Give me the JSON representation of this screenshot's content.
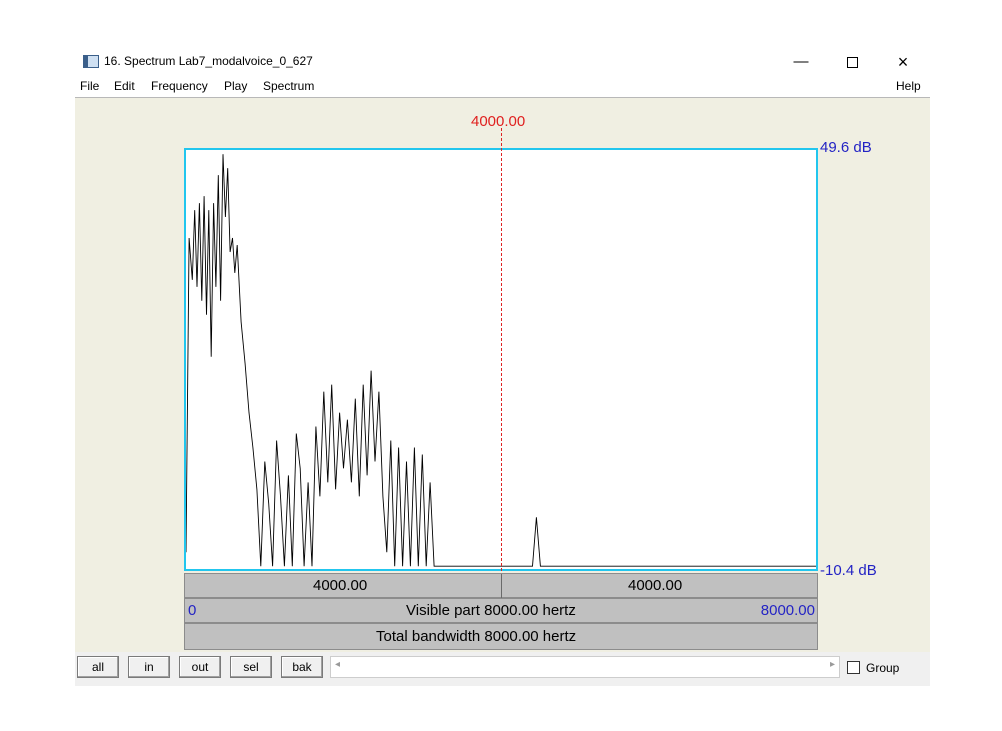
{
  "window": {
    "title": "16. Spectrum Lab7_modalvoice_0_627",
    "minimize": "—",
    "close": "×"
  },
  "menu": {
    "items": [
      "File",
      "Edit",
      "Frequency",
      "Play",
      "Spectrum"
    ],
    "help": "Help"
  },
  "colors": {
    "plot_border": "#22c6ee",
    "cursor": "#e0201f",
    "axis_text": "#2323c4",
    "background": "#f0efe2"
  },
  "cursor": {
    "label": "4000.00"
  },
  "db": {
    "top": "49.6 dB",
    "bottom": "-10.4 dB"
  },
  "bars": {
    "left_half": "4000.00",
    "right_half": "4000.00",
    "visible_start": "0",
    "visible_label": "Visible part 8000.00 hertz",
    "visible_end": "8000.00",
    "total_label": "Total bandwidth 8000.00 hertz"
  },
  "toolbar": {
    "buttons": [
      "all",
      "in",
      "out",
      "sel",
      "bak"
    ],
    "scroll_left": "◂",
    "scroll_right": "▸",
    "group_label": "Group"
  },
  "chart_data": {
    "type": "line",
    "title": "",
    "xlabel": "",
    "ylabel": "",
    "xlim": [
      0,
      8000
    ],
    "ylim": [
      -10.4,
      49.6
    ],
    "series": [
      {
        "x": [
          0,
          40,
          80,
          110,
          140,
          170,
          200,
          230,
          260,
          290,
          320,
          350,
          380,
          410,
          440,
          470,
          500,
          530,
          560,
          590,
          620,
          650,
          700,
          750,
          800,
          850,
          900,
          950,
          1000,
          1050,
          1100,
          1150,
          1200,
          1250,
          1300,
          1350,
          1400,
          1450,
          1500,
          1550,
          1600,
          1650,
          1700,
          1750,
          1800,
          1850,
          1900,
          1950,
          2000,
          2050,
          2100,
          2150,
          2200,
          2250,
          2300,
          2350,
          2400,
          2450,
          2500,
          2550,
          2600,
          2650,
          2700,
          2750,
          2800,
          2850,
          2900,
          2950,
          3000,
          3050,
          3100,
          3150,
          3200,
          3250,
          3300,
          3350,
          3400,
          3450,
          3500,
          3550,
          3600,
          3650,
          3700,
          3750,
          3800,
          3850,
          3900,
          3950,
          4000,
          4100,
          4200,
          4300,
          4400,
          4450,
          4500,
          4550,
          4600,
          4700,
          5000,
          6000,
          7000,
          8000
        ],
        "y": [
          -8,
          37,
          31,
          41,
          30,
          42,
          28,
          43,
          26,
          41,
          20,
          42,
          30,
          46,
          28,
          49,
          40,
          47,
          35,
          37,
          32,
          36,
          25,
          19,
          12,
          7,
          1,
          -10,
          5,
          -1,
          -10,
          8,
          0,
          -10,
          3,
          -10,
          9,
          4,
          -10,
          2,
          -10,
          10,
          0,
          15,
          2,
          16,
          1,
          12,
          4,
          11,
          2,
          14,
          0,
          16,
          3,
          18,
          5,
          15,
          0,
          -8,
          8,
          -10,
          7,
          -10,
          5,
          -10,
          7,
          -10,
          6,
          -10,
          2,
          -10,
          -10,
          -10,
          -10,
          -10,
          -10,
          -10,
          -10,
          -10,
          -10,
          -10,
          -10,
          -10,
          -10,
          -10,
          -10,
          -10,
          -10,
          -10,
          -10,
          -10,
          -10,
          -3,
          -10,
          -10,
          -10,
          -10,
          -10,
          -10,
          -10,
          -10
        ]
      }
    ]
  }
}
